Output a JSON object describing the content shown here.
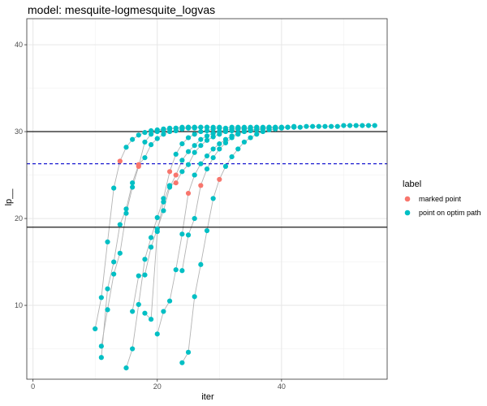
{
  "chart_data": {
    "type": "scatter",
    "title": "model: mesquite-logmesquite_logvas",
    "xlabel": "iter",
    "ylabel": "lp__",
    "xlim": [
      -1,
      57
    ],
    "ylim": [
      1.5,
      43
    ],
    "x_ticks": [
      0,
      20,
      40
    ],
    "y_ticks": [
      10,
      20,
      30,
      40
    ],
    "grid": true,
    "legend": {
      "title": "label",
      "position": "right",
      "entries": [
        {
          "label": "marked point",
          "color": "#F8766D"
        },
        {
          "label": "point on optim path",
          "color": "#00BFC4"
        }
      ]
    },
    "hlines": [
      {
        "y": 30,
        "style": "solid",
        "color": "#000000"
      },
      {
        "y": 26.3,
        "style": "dashed",
        "color": "#0000cc"
      },
      {
        "y": 19,
        "style": "solid",
        "color": "#000000"
      }
    ],
    "paths": [
      {
        "x": [
          10,
          11,
          12,
          13,
          14,
          15,
          16,
          17,
          18,
          19,
          20,
          21,
          22,
          23,
          24,
          25,
          26
        ],
        "y": [
          7.3,
          10.9,
          17.3,
          23.5,
          26.6,
          28.2,
          29.1,
          29.6,
          29.9,
          30.1,
          30.2,
          30.3,
          30.4,
          30.4,
          30.5,
          30.5,
          30.5
        ],
        "marked_index": 4
      },
      {
        "x": [
          11,
          12,
          13,
          14,
          15,
          16,
          17,
          18,
          19,
          20,
          21,
          22,
          23,
          24,
          25,
          26,
          27,
          28
        ],
        "y": [
          5.3,
          9.5,
          13.6,
          16.0,
          20.6,
          23.6,
          26.0,
          28.8,
          29.7,
          30.0,
          30.2,
          30.3,
          30.4,
          30.4,
          30.5,
          30.5,
          30.5,
          30.5
        ],
        "marked_index": 6
      },
      {
        "x": [
          11,
          12,
          13,
          14,
          15,
          16,
          17,
          18,
          19,
          20,
          21,
          22,
          23,
          24,
          25,
          26,
          27,
          28,
          29,
          30
        ],
        "y": [
          4.0,
          11.9,
          15.0,
          19.3,
          21.1,
          24.1,
          26.2,
          27.0,
          28.5,
          29.2,
          29.7,
          30.0,
          30.1,
          30.3,
          30.4,
          30.4,
          30.5,
          30.5,
          30.5,
          30.5
        ],
        "marked_index": 6
      },
      {
        "x": [
          15,
          16,
          17,
          18,
          19,
          20,
          21,
          22,
          23,
          24,
          25,
          26,
          27,
          28,
          29,
          30,
          31,
          32,
          33,
          34
        ],
        "y": [
          2.8,
          5.0,
          10.1,
          15.3,
          17.8,
          20.1,
          22.3,
          25.4,
          27.4,
          28.6,
          29.3,
          29.7,
          30.0,
          30.1,
          30.3,
          30.4,
          30.4,
          30.5,
          30.5,
          30.5
        ],
        "marked_index": 7
      },
      {
        "x": [
          16,
          17,
          18,
          19,
          20,
          21,
          22,
          23,
          24,
          25,
          26,
          27,
          28,
          29,
          30,
          31,
          32,
          33,
          34,
          35,
          36
        ],
        "y": [
          9.3,
          13.4,
          13.5,
          16.7,
          18.8,
          20.9,
          23.6,
          25.0,
          26.7,
          27.7,
          28.4,
          29.1,
          29.5,
          29.8,
          30.0,
          30.2,
          30.3,
          30.4,
          30.4,
          30.5,
          30.5
        ],
        "marked_index": 7
      },
      {
        "x": [
          18,
          19,
          20,
          21,
          22,
          23,
          24,
          25,
          26,
          27,
          28,
          29,
          30,
          31,
          32,
          33,
          34,
          35,
          36,
          37,
          38,
          39
        ],
        "y": [
          9.1,
          8.4,
          18.5,
          21.9,
          23.8,
          24.1,
          25.4,
          26.2,
          27.6,
          28.4,
          29.0,
          29.4,
          29.7,
          30.0,
          30.1,
          30.3,
          30.3,
          30.4,
          30.5,
          30.5,
          30.5,
          30.5
        ],
        "marked_index": 5
      },
      {
        "x": [
          20,
          21,
          22,
          23,
          24,
          25,
          26,
          27,
          28,
          29,
          30,
          31,
          32,
          33,
          34,
          35,
          36,
          37,
          38,
          39,
          40,
          41
        ],
        "y": [
          6.7,
          9.3,
          10.5,
          14.1,
          18.2,
          22.9,
          25.0,
          26.3,
          27.2,
          28.0,
          28.6,
          29.1,
          29.5,
          29.8,
          30.0,
          30.1,
          30.2,
          30.3,
          30.4,
          30.4,
          30.5,
          30.5
        ],
        "marked_index": 5
      },
      {
        "x": [
          24,
          25,
          26,
          27,
          28,
          29,
          30,
          31,
          32,
          33,
          34,
          35,
          36,
          37,
          38,
          39,
          40,
          41,
          42,
          43,
          44,
          45,
          46,
          47,
          48,
          49,
          50,
          51,
          52,
          53,
          54,
          55
        ],
        "y": [
          3.4,
          4.6,
          11.0,
          14.7,
          18.6,
          22.3,
          24.5,
          26.0,
          27.1,
          28.0,
          28.8,
          29.3,
          29.7,
          30.0,
          30.2,
          30.3,
          30.4,
          30.5,
          30.5,
          30.5,
          30.6,
          30.6,
          30.6,
          30.6,
          30.6,
          30.6,
          30.7,
          30.7,
          30.7,
          30.7,
          30.7,
          30.7
        ],
        "marked_index": 6
      },
      {
        "x": [
          24,
          25,
          26,
          27,
          28,
          29,
          30,
          31,
          32,
          33,
          34,
          35,
          36,
          37,
          38,
          39,
          40,
          41,
          42
        ],
        "y": [
          14.0,
          18.1,
          20.0,
          23.8,
          25.7,
          27.0,
          28.0,
          28.7,
          29.3,
          29.7,
          30.0,
          30.2,
          30.3,
          30.4,
          30.5,
          30.5,
          30.5,
          30.5,
          30.6
        ],
        "marked_index": 3
      }
    ]
  }
}
